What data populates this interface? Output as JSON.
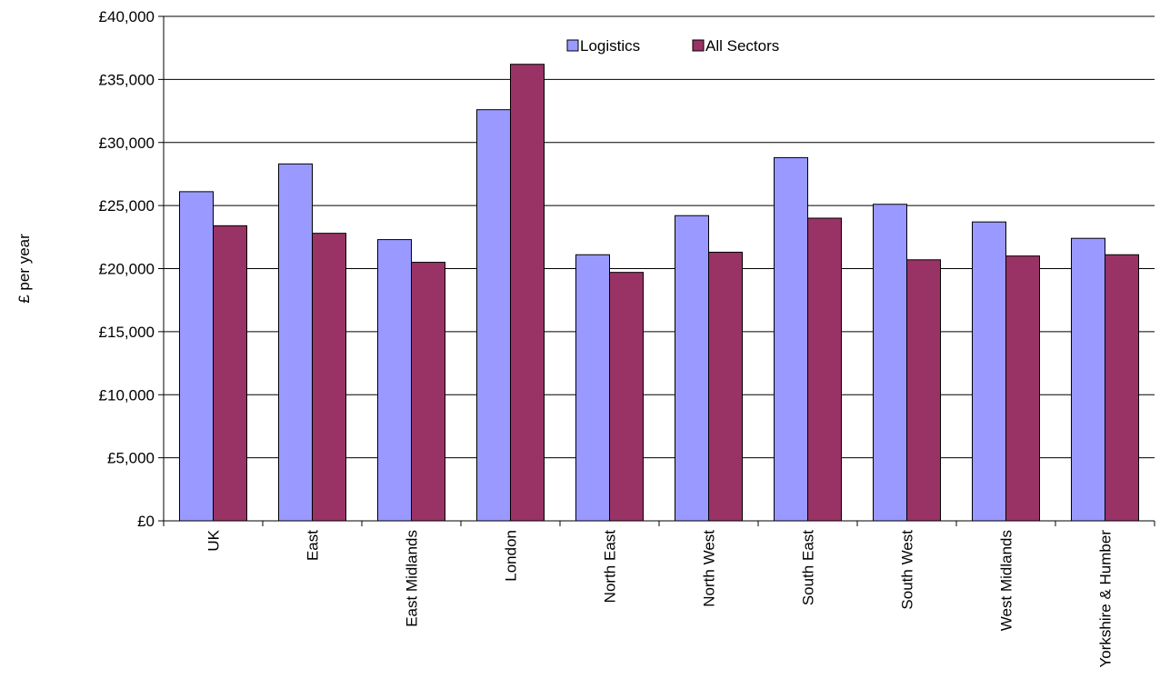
{
  "chart_data": {
    "type": "bar",
    "title": "",
    "xlabel": "",
    "ylabel": "£ per year",
    "ylim": [
      0,
      40000
    ],
    "yticks": [
      0,
      5000,
      10000,
      15000,
      20000,
      25000,
      30000,
      35000,
      40000
    ],
    "ytick_labels": [
      "£0",
      "£5,000",
      "£10,000",
      "£15,000",
      "£20,000",
      "£25,000",
      "£30,000",
      "£35,000",
      "£40,000"
    ],
    "grid": "horizontal",
    "legend_position": "top-center",
    "categories": [
      "UK",
      "East",
      "East Midlands",
      "London",
      "North East",
      "North West",
      "South East",
      "South West",
      "West Midlands",
      "Yorkshire & Humber"
    ],
    "series": [
      {
        "name": "Logistics",
        "color": "#9999FF",
        "values": [
          26100,
          28300,
          22300,
          32600,
          21100,
          24200,
          28800,
          25100,
          23700,
          22400
        ]
      },
      {
        "name": "All Sectors",
        "color": "#993366",
        "values": [
          23400,
          22800,
          20500,
          36200,
          19700,
          21300,
          24000,
          20700,
          21000,
          21100
        ]
      }
    ]
  }
}
